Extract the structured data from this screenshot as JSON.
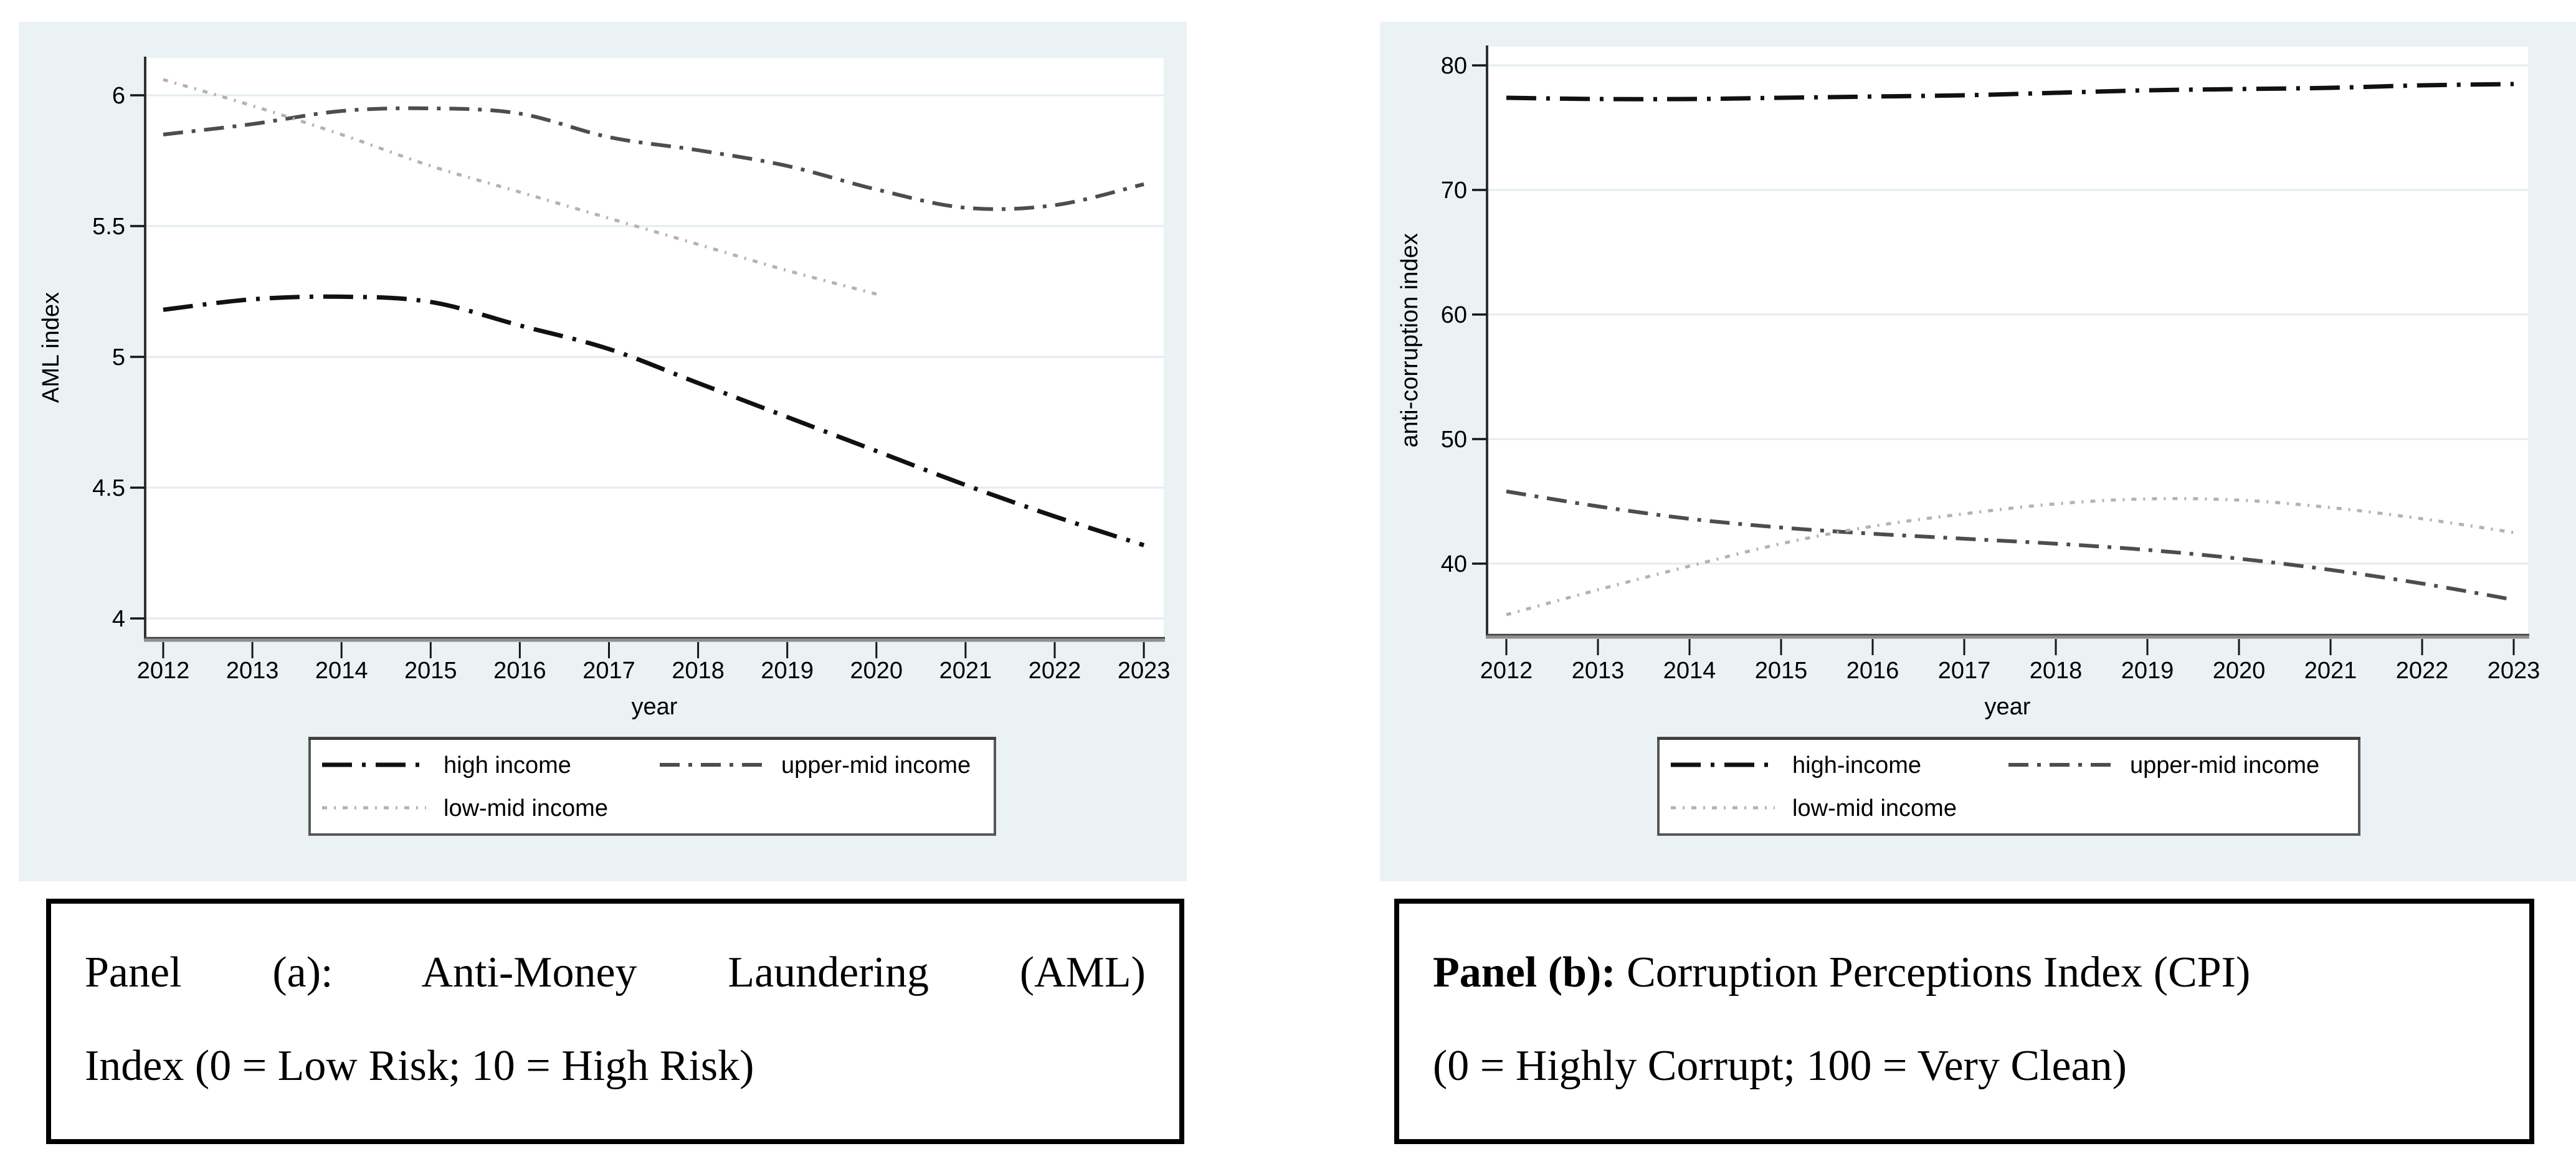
{
  "colors": {
    "panel_bg": "#eaf2f3",
    "plot_bg": "#ffffff",
    "grid": "#e2edf1",
    "axis_bottom": "#8f8f8f",
    "axis_bottom_edge": "#3e3e3e",
    "axis_left": "#303030",
    "tick": "#161616",
    "legend_border": "#565656",
    "legend_bg": "#ffffff",
    "caption_border": "#000000",
    "text": "#000000"
  },
  "panels": [
    {
      "name": "panel-a",
      "caption": {
        "lead": "Panel (a):",
        "line1_rest": " Anti-Money Laundering (AML)",
        "line2": "Index (0 = Low Risk; 10 = High Risk)"
      }
    },
    {
      "name": "panel-b",
      "caption": {
        "lead": "Panel (b):",
        "line1_rest": " Corruption Perceptions Index (CPI)",
        "line2": "(0 = Highly Corrupt; 100 = Very Clean)"
      }
    }
  ],
  "chart_data": [
    {
      "type": "line",
      "title": "",
      "xlabel": "year",
      "ylabel": "AML index",
      "x": [
        2012,
        2013,
        2014,
        2015,
        2016,
        2017,
        2018,
        2019,
        2020,
        2021,
        2022,
        2023
      ],
      "yticks": [
        4,
        4.5,
        5,
        5.5,
        6
      ],
      "ylim": [
        3.93,
        6.15
      ],
      "xlim": [
        2011.8,
        2023.25
      ],
      "grid": "horizontal",
      "legend_position": "bottom",
      "series": [
        {
          "name": "high income",
          "color": "#111111",
          "dash": "48 16 6 16",
          "width": 7,
          "values": [
            5.18,
            5.22,
            5.23,
            5.21,
            5.12,
            5.03,
            4.9,
            4.77,
            4.64,
            4.51,
            4.39,
            4.28
          ]
        },
        {
          "name": "upper-mid income",
          "color": "#4d4d4d",
          "dash": "32 14 6 14",
          "width": 6,
          "values": [
            5.85,
            5.89,
            5.94,
            5.95,
            5.93,
            5.84,
            5.79,
            5.73,
            5.64,
            5.57,
            5.58,
            5.66
          ]
        },
        {
          "name": "low-mid income",
          "color": "#b2b2b2",
          "dash": "8 11 3 11",
          "width": 5,
          "values": [
            6.06,
            5.96,
            5.85,
            5.73,
            5.63,
            5.53,
            5.43,
            5.33,
            5.24,
            null,
            null,
            null
          ]
        }
      ]
    },
    {
      "type": "line",
      "title": "",
      "xlabel": "year",
      "ylabel": "anti-corruption index",
      "x": [
        2012,
        2013,
        2014,
        2015,
        2016,
        2017,
        2018,
        2019,
        2020,
        2021,
        2022,
        2023
      ],
      "yticks": [
        40,
        50,
        60,
        70,
        80
      ],
      "ylim": [
        34.3,
        81.5
      ],
      "xlim": [
        2011.8,
        2023.2
      ],
      "grid": "horizontal",
      "legend_position": "bottom",
      "series": [
        {
          "name": "high-income",
          "color": "#111111",
          "dash": "48 16 6 16",
          "width": 7,
          "values": [
            77.4,
            77.3,
            77.3,
            77.4,
            77.5,
            77.6,
            77.8,
            78.0,
            78.1,
            78.2,
            78.4,
            78.5
          ]
        },
        {
          "name": "upper-mid income",
          "color": "#4d4d4d",
          "dash": "32 14 6 14",
          "width": 6,
          "values": [
            45.8,
            44.6,
            43.6,
            42.9,
            42.4,
            42.0,
            41.6,
            41.1,
            40.4,
            39.5,
            38.4,
            37.1
          ]
        },
        {
          "name": "low-mid income",
          "color": "#b2b2b2",
          "dash": "8 11 3 11",
          "width": 5,
          "values": [
            35.9,
            37.9,
            39.8,
            41.6,
            43.0,
            44.0,
            44.8,
            45.2,
            45.1,
            44.5,
            43.6,
            42.5
          ]
        }
      ]
    }
  ]
}
